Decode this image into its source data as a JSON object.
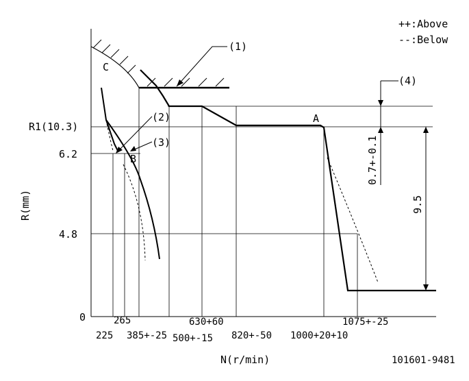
{
  "legend": {
    "above": "++:Above",
    "below": "--:Below"
  },
  "y_axis": {
    "label": "R(mm)",
    "ticks": [
      "R1(10.3)",
      "6.2",
      "4.8",
      "0"
    ]
  },
  "x_axis": {
    "label": "N(r/min)",
    "ticks": [
      "225",
      "265",
      "385+-25",
      "500+-15",
      "630+60",
      "820+-50",
      "1000+20+10",
      "1075+-25"
    ]
  },
  "points": {
    "a": "A",
    "b": "B",
    "c": "C"
  },
  "callouts": [
    "(1)",
    "(2)",
    "(3)",
    "(4)"
  ],
  "dimensions": {
    "tolerance": "0.7+-0.1",
    "stroke": "9.5"
  },
  "drawing_number": "101601-9481",
  "colors": {
    "line": "#000000",
    "background": "#ffffff"
  }
}
